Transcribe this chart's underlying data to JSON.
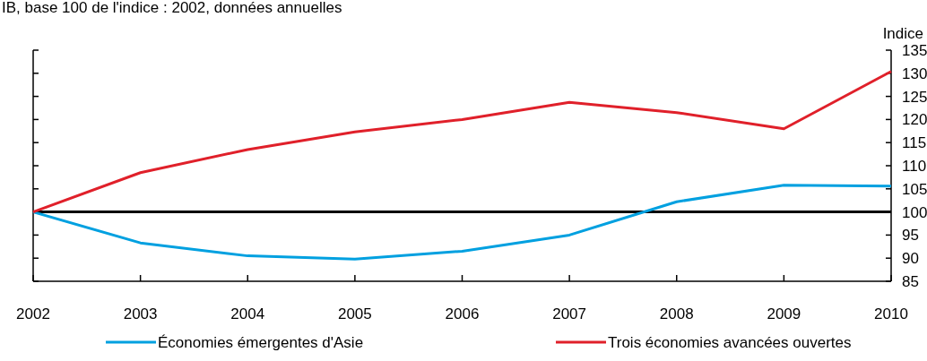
{
  "chart_data": {
    "type": "line",
    "title": "IB, base 100 de l'indice : 2002, données annuelles",
    "ylabel": "Indice",
    "x": [
      2002,
      2003,
      2004,
      2005,
      2006,
      2007,
      2008,
      2009,
      2010
    ],
    "series": [
      {
        "name": "Économies émergentes d'Asie",
        "color": "#00a0e0",
        "values": [
          100,
          93.3,
          90.5,
          89.8,
          91.5,
          95,
          102.2,
          105.8,
          105.6
        ]
      },
      {
        "name": "Trois économies avancées ouvertes",
        "color": "#e0202a",
        "values": [
          100,
          108.5,
          113.5,
          117.3,
          120,
          123.7,
          121.5,
          118,
          130.4
        ]
      }
    ],
    "xlim": [
      2002,
      2010
    ],
    "xticks": [
      2002,
      2003,
      2004,
      2005,
      2006,
      2007,
      2008,
      2009,
      2010
    ],
    "ylim": [
      85,
      135
    ],
    "yticks": [
      85,
      90,
      95,
      100,
      105,
      110,
      115,
      120,
      125,
      130,
      135
    ],
    "ref_lines": [
      {
        "axis": "y",
        "value": 100,
        "color": "#000000"
      }
    ],
    "legend": "bottom",
    "grid": false,
    "marker": "none",
    "line_style": "solid"
  }
}
